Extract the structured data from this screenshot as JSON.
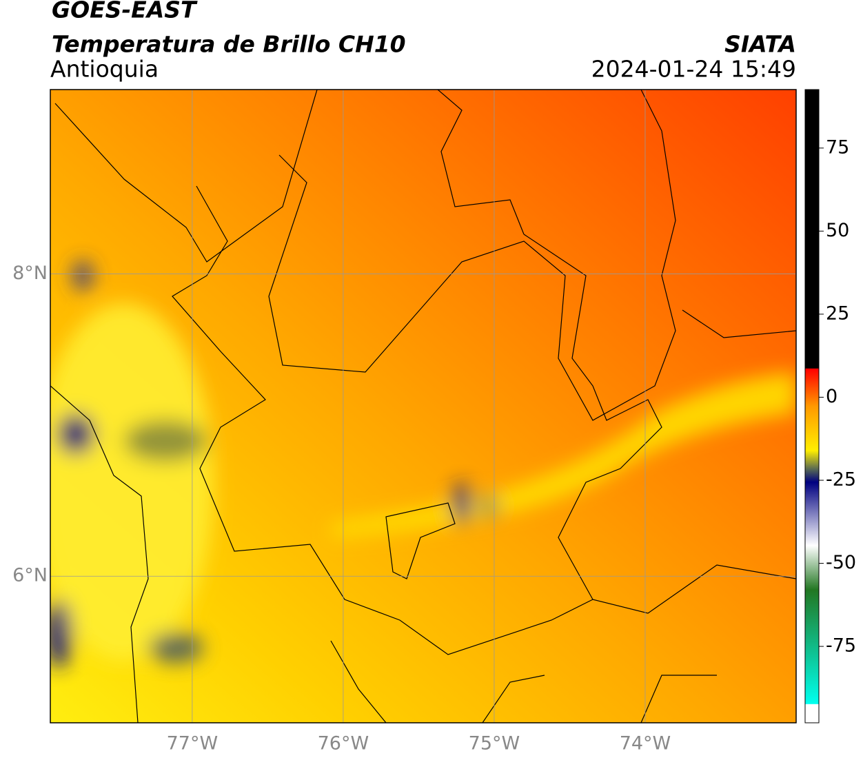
{
  "header": {
    "title": "GOES-EAST",
    "subtitle": "Temperatura de Brillo CH10",
    "region": "Antioquia",
    "source": "SIATA",
    "datetime": "2024-01-24 15:49"
  },
  "map": {
    "xlim": [
      -77.94,
      -73.0
    ],
    "ylim": [
      5.03,
      9.22
    ],
    "xticks": [
      {
        "value": -77,
        "label": "77°W"
      },
      {
        "value": -76,
        "label": "76°W"
      },
      {
        "value": -75,
        "label": "75°W"
      },
      {
        "value": -74,
        "label": "74°W"
      }
    ],
    "yticks": [
      {
        "value": 8,
        "label": "8°N"
      },
      {
        "value": 6,
        "label": "6°N"
      }
    ],
    "grid": true
  },
  "colorbar": {
    "lim": [
      -98,
      92.6
    ],
    "ticks": [
      75,
      50,
      25,
      0,
      -25,
      -50,
      -75
    ]
  }
}
